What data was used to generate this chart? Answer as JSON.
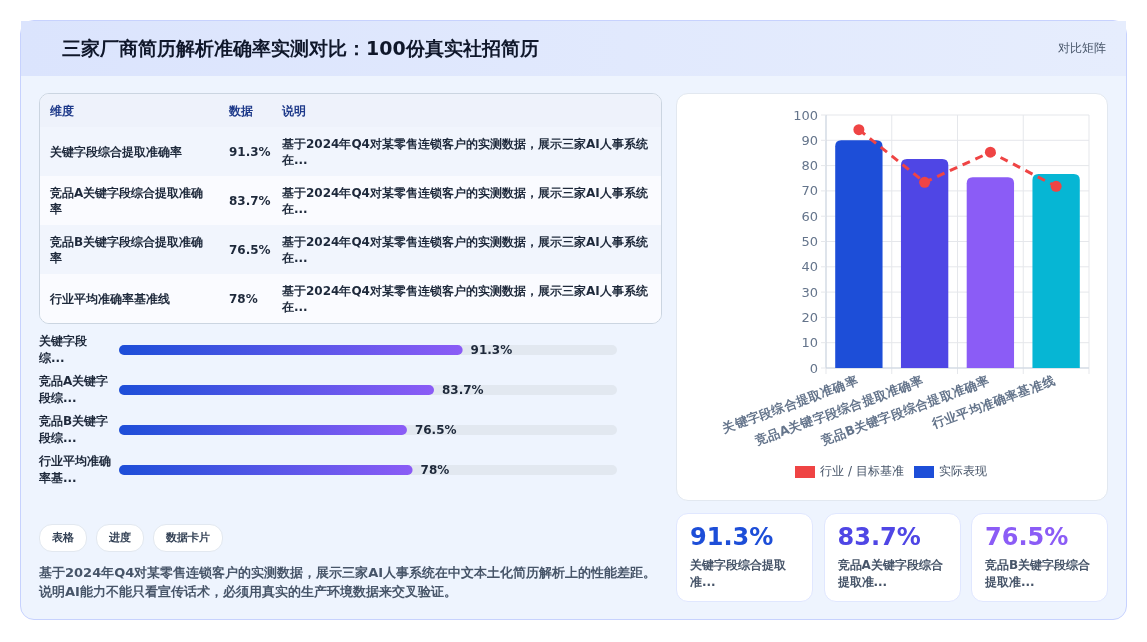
{
  "chart_data": [
    {
      "type": "other",
      "title": "三家厂商简历解析准确率实测对比：100份真实社招简历",
      "annotations": [
        "对比矩阵"
      ]
    },
    {
      "type": "other",
      "annotations": [
        "维度",
        "数据",
        "说明",
        "关键字段综合提取准确率",
        "91.3%",
        "基于2024年Q4对某零售连锁客户的实测数据，展示三家AI人事系统在...",
        "竞品A关键字段综合提取准确率",
        "83.7%",
        "基于2024年Q4对某零售连锁客户的实测数据，展示三家AI人事系统在...",
        "竞品B关键字段综合提取准确率",
        "76.5%",
        "基于2024年Q4对某零售连锁客户的实测数据，展示三家AI人事系统在...",
        "行业平均准确率基准线",
        "78%",
        "基于2024年Q4对某零售连锁客户的实测数据，展示三家AI人事系统在..."
      ]
    },
    {
      "type": "bar",
      "orientation": "horizontal",
      "categories": [
        "关键字段综...",
        "竞品A关键字段综...",
        "竞品B关键字段综...",
        "行业平均准确率基..."
      ],
      "values": [
        91.3,
        83.7,
        76.5,
        78
      ],
      "value_labels": [
        "91.3%",
        "83.7%",
        "76.5%",
        "78%"
      ],
      "color": "#1d4ed8",
      "tick_labels": false
    },
    {
      "type": "other",
      "annotations": [
        "表格",
        "进度",
        "数据卡片",
        "基于2024年Q4对某零售连锁客户的实测数据，展示三家AI人事系统在中文本土化简历解析上的性能差距。说明AI能力不能只看宣传话术，必须用真实的生产环境数据来交叉验证。"
      ]
    },
    {
      "type": "bar",
      "categories": [
        "关键字段综合提取准确率",
        "竞品A关键字段综合提取准确率",
        "竞品B关键字段综合提取准确率",
        "行业平均准确率基准线"
      ],
      "series": [
        {
          "name": "行业 / 目标基准",
          "type": "line",
          "color": "#ef4444",
          "line_style": "dashed",
          "marker": "circle",
          "values": [
            94.2,
            73.4,
            85.3,
            71.8
          ]
        },
        {
          "name": "实际表现",
          "color": "#1d4ed8",
          "colors": [
            "#1d4ed8",
            "#4f46e5",
            "#8b5cf6",
            "#06b6d4"
          ],
          "values": [
            90,
            82.6,
            75.4,
            76.7
          ]
        }
      ],
      "ylim": [
        0,
        100
      ],
      "yticks": [
        0,
        10,
        20,
        30,
        40,
        50,
        60,
        70,
        80,
        90,
        100
      ],
      "grid": true,
      "legend": "bottom"
    },
    {
      "type": "other",
      "annotations": [
        "91.3%",
        "关键字段综合提取准...",
        "83.7%",
        "竞品A关键字段综合提取准...",
        "76.5%",
        "竞品B关键字段综合提取准..."
      ]
    }
  ]
}
